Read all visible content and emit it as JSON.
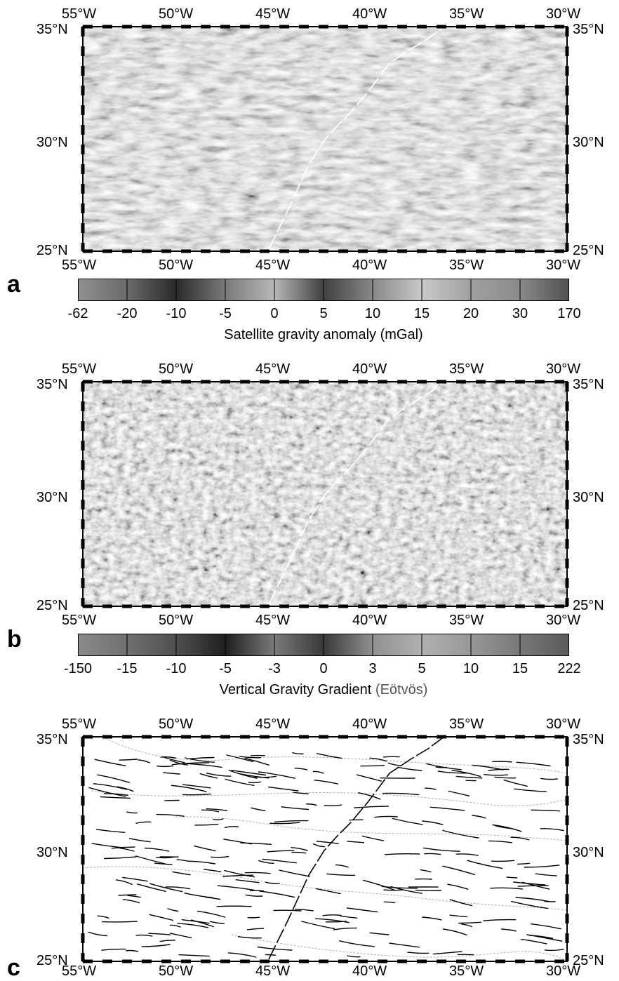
{
  "lon_labels": [
    "55°W",
    "50°W",
    "45°W",
    "40°W",
    "35°W",
    "30°W"
  ],
  "lat_labels": [
    "35°N",
    "30°N",
    "25°N"
  ],
  "panels": [
    {
      "letter": "a",
      "colorbar_ticks": [
        "-62",
        "-20",
        "-10",
        "-5",
        "0",
        "5",
        "10",
        "15",
        "20",
        "30",
        "170"
      ],
      "colorbar_title": "Satellite gravity anomaly (mGal)",
      "colorbar_stops": [
        "#909090",
        "#6a6a6a",
        "#2a2a2a",
        "#7a7a7a",
        "#b8b8b8",
        "#404040",
        "#888888",
        "#c8c8c8",
        "#a0a0a0",
        "#8a8a8a",
        "#505050"
      ]
    },
    {
      "letter": "b",
      "colorbar_ticks": [
        "-150",
        "-15",
        "-10",
        "-5",
        "-3",
        "0",
        "3",
        "5",
        "10",
        "15",
        "222"
      ],
      "colorbar_title_main": "Vertical Gravity Gradient ",
      "colorbar_title_unit": "(Eötvös)",
      "colorbar_stops": [
        "#8a8a8a",
        "#707070",
        "#505050",
        "#202020",
        "#7a7a7a",
        "#3a3a3a",
        "#909090",
        "#b0b0b0",
        "#989898",
        "#787878",
        "#5a5a5a"
      ]
    },
    {
      "letter": "c"
    }
  ],
  "colors": {
    "map_a_base": "#8c8c8c",
    "map_b_base": "#7c7c7c",
    "ridge_line": "#ffffff",
    "lineament": "#000000",
    "isochron": "#b0b0b0"
  }
}
